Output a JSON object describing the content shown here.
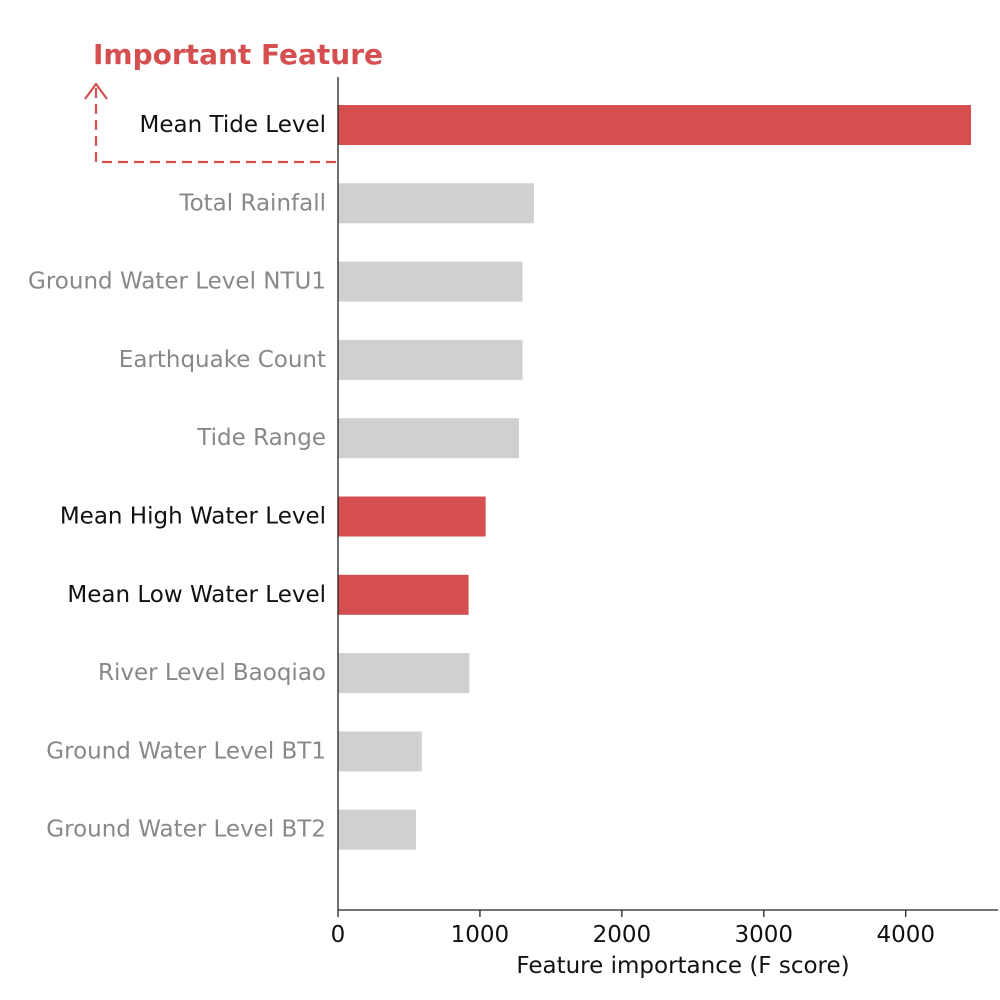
{
  "annotation": {
    "text": "Important Feature",
    "color": "#d64f50"
  },
  "colors": {
    "highlight": "#d64f50",
    "normal": "#d0d0d0",
    "highlight_text": "#111111",
    "normal_text": "#888888",
    "axis": "#222222"
  },
  "chart_data": {
    "type": "bar",
    "orientation": "horizontal",
    "title": "",
    "xlabel": "Feature importance (F score)",
    "ylabel": "",
    "xlim": [
      0,
      4650
    ],
    "xticks": [
      0,
      1000,
      2000,
      3000,
      4000
    ],
    "grid": false,
    "categories": [
      "Mean Tide Level",
      "Total Rainfall",
      "Ground Water Level NTU1",
      "Earthquake Count",
      "Tide Range",
      "Mean High Water Level",
      "Mean Low Water Level",
      "River Level Baoqiao",
      "Ground Water Level BT1",
      "Ground Water Level BT2"
    ],
    "values": [
      4460,
      1380,
      1300,
      1300,
      1275,
      1040,
      920,
      925,
      590,
      550
    ],
    "highlighted": [
      true,
      false,
      false,
      false,
      false,
      true,
      true,
      false,
      false,
      false
    ]
  }
}
